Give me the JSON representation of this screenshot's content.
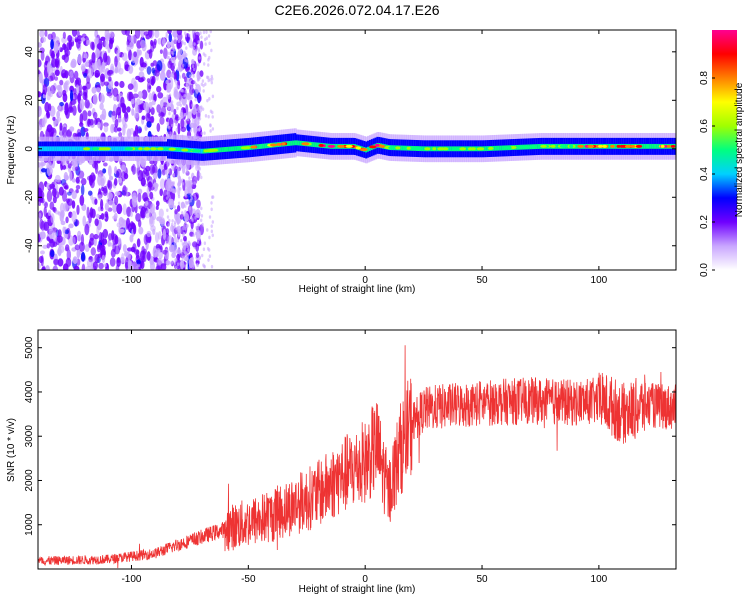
{
  "figure_title": "C2E6.2026.072.04.17.E26",
  "chart_data": [
    {
      "type": "heatmap",
      "xlabel": "Height of straight line (km)",
      "ylabel": "Frequency (Hz)",
      "xlim": [
        -140,
        133
      ],
      "ylim": [
        -50,
        49
      ],
      "x_ticks": [
        -100,
        -50,
        0,
        50,
        100
      ],
      "x_tick_labels": [
        "-100",
        "-50",
        "0",
        "50",
        "100"
      ],
      "y_ticks": [
        -40,
        -20,
        0,
        20,
        40
      ],
      "y_tick_labels": [
        "-40",
        "-20",
        "0",
        "20",
        "40"
      ],
      "colorbar": {
        "label": "Normalized spectral amplitude",
        "range": [
          0,
          1
        ],
        "ticks": [
          0.0,
          0.2,
          0.4,
          0.6,
          0.8
        ],
        "tick_labels": [
          "0.0",
          "0.2",
          "0.4",
          "0.6",
          "0.8"
        ],
        "colors": [
          "#ffffff",
          "#c9a6ff",
          "#6f00ff",
          "#0000ff",
          "#00d0ff",
          "#00ff80",
          "#a0ff00",
          "#ffff00",
          "#ff8000",
          "#ff0000",
          "#ff0090"
        ]
      },
      "ridge_trend": {
        "x": [
          -140,
          -120,
          -100,
          -85,
          -70,
          -50,
          -30,
          -15,
          -5,
          0,
          5,
          10,
          25,
          50,
          75,
          100,
          133
        ],
        "frequency": [
          0,
          0,
          0,
          0,
          -1,
          0.5,
          2.5,
          1,
          1,
          -0.5,
          1.5,
          0.5,
          0,
          0,
          1,
          1,
          1
        ]
      }
    },
    {
      "type": "line",
      "xlabel": "Height of straight line (km)",
      "ylabel": "SNR (10 * v/v)",
      "xlim": [
        -140,
        133
      ],
      "ylim": [
        0,
        5400
      ],
      "x_ticks": [
        -100,
        -50,
        0,
        50,
        100
      ],
      "x_tick_labels": [
        "-100",
        "-50",
        "0",
        "50",
        "100"
      ],
      "y_ticks": [
        1000,
        2000,
        3000,
        4000,
        5000
      ],
      "y_tick_labels": [
        "1000",
        "2000",
        "3000",
        "4000",
        "5000"
      ],
      "line_color": "#ee3333",
      "series_trend": {
        "x": [
          -140,
          -110,
          -90,
          -80,
          -60,
          -40,
          -20,
          -10,
          0,
          5,
          10,
          15,
          20,
          25,
          30,
          40,
          50,
          70,
          90,
          100,
          105,
          110,
          115,
          120,
          133
        ],
        "y": [
          180,
          220,
          350,
          550,
          900,
          1200,
          1700,
          2100,
          2400,
          2800,
          1700,
          2700,
          3300,
          3600,
          3650,
          3700,
          3750,
          3800,
          3750,
          3800,
          3700,
          3500,
          3600,
          3700,
          3650
        ]
      }
    }
  ]
}
